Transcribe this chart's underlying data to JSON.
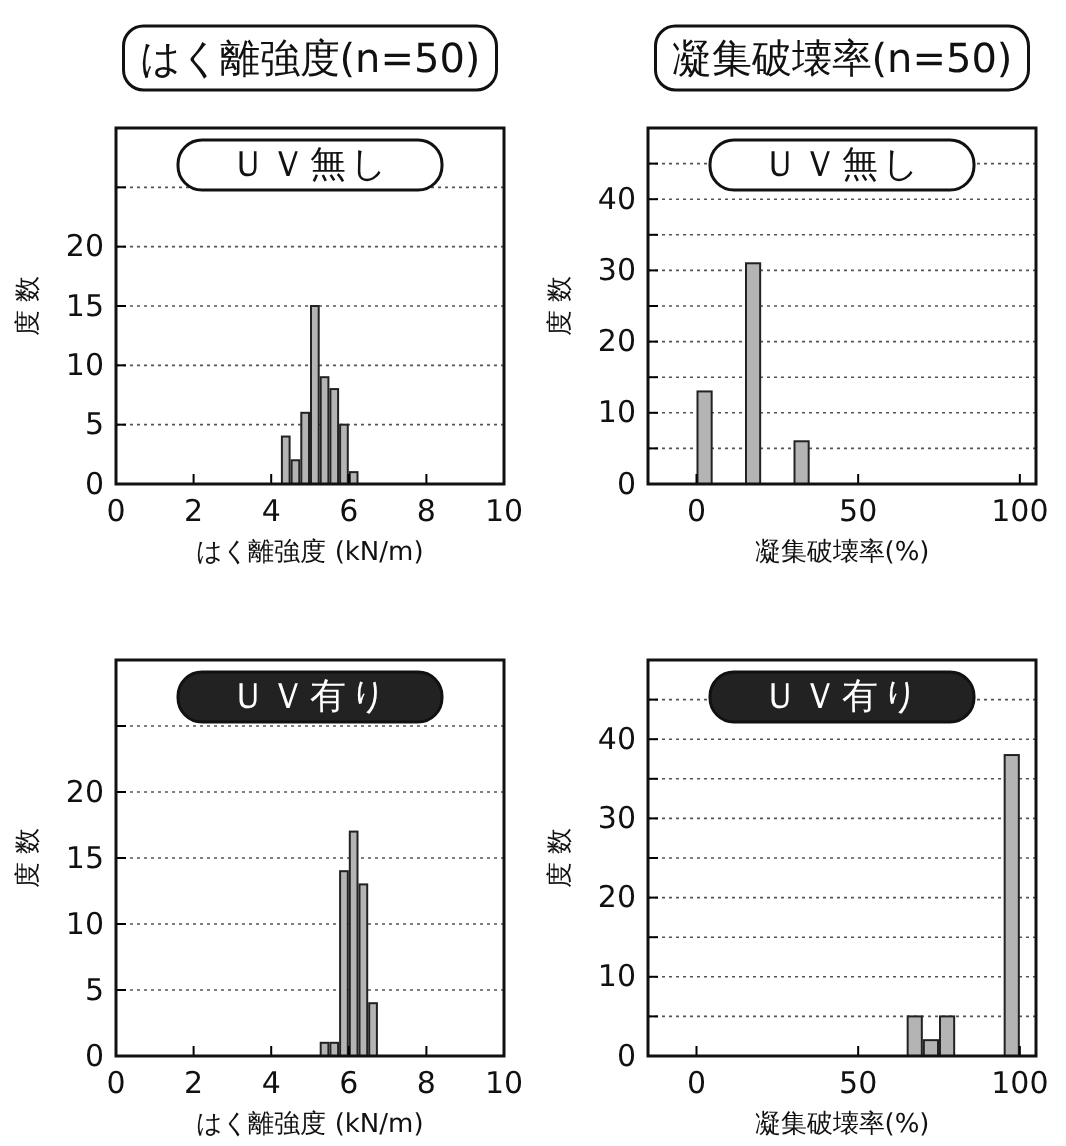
{
  "chart_data": [
    {
      "type": "histogram",
      "title": "はく離強度(n=50)",
      "subtitle": "ＵＶ無し",
      "xlabel": "はく離強度 (kN/m)",
      "ylabel": "度 数",
      "bins": [
        4.25,
        4.5,
        4.75,
        5,
        5.25,
        5.5,
        5.75,
        6,
        6.25
      ],
      "values": [
        4,
        2,
        6,
        15,
        9,
        8,
        5,
        1
      ],
      "color": "#b4b4b4",
      "xlim": [
        0,
        10
      ],
      "xticks": [
        0,
        2,
        4,
        6,
        8,
        10
      ],
      "ylim": [
        0,
        30
      ],
      "yticks": [
        0,
        5,
        10,
        15,
        20,
        {
          "value": 25,
          "label": null
        }
      ],
      "grid": "y"
    },
    {
      "type": "histogram",
      "title": "凝集破壊率(n=50)",
      "subtitle": "ＵＶ無し",
      "xlabel": "凝集破壊率(%)",
      "ylabel": "度 数",
      "bins": [
        0,
        5,
        10,
        15,
        20,
        25,
        30,
        35
      ],
      "values": [
        13,
        0,
        0,
        31,
        0,
        0,
        6
      ],
      "color": "#b4b4b4",
      "xlim": [
        -15,
        105
      ],
      "xticks": [
        0,
        50,
        100
      ],
      "ylim": [
        0,
        50
      ],
      "yticks": [
        0,
        {
          "value": 5,
          "label": null
        },
        10,
        {
          "value": 15,
          "label": null
        },
        20,
        {
          "value": 25,
          "label": null
        },
        30,
        {
          "value": 35,
          "label": null
        },
        40,
        {
          "value": 45,
          "label": null
        }
      ],
      "grid": "y"
    },
    {
      "type": "histogram",
      "subtitle": "ＵＶ有り",
      "xlabel": "はく離強度 (kN/m)",
      "ylabel": "度 数",
      "bins": [
        5.25,
        5.5,
        5.75,
        6,
        6.25,
        6.5,
        6.75
      ],
      "values": [
        1,
        1,
        14,
        17,
        13,
        4
      ],
      "color": "#b4b4b4",
      "xlim": [
        0,
        10
      ],
      "xticks": [
        0,
        2,
        4,
        6,
        8,
        10
      ],
      "ylim": [
        0,
        30
      ],
      "yticks": [
        0,
        5,
        10,
        15,
        20,
        {
          "value": 25,
          "label": null
        }
      ],
      "grid": "y"
    },
    {
      "type": "histogram",
      "subtitle": "ＵＶ有り",
      "xlabel": "凝集破壊率(%)",
      "ylabel": "度 数",
      "bins": [
        65,
        70,
        75,
        80,
        85,
        90,
        95,
        100
      ],
      "values": [
        5,
        2,
        5,
        0,
        0,
        0,
        38
      ],
      "color": "#b4b4b4",
      "xlim": [
        -15,
        105
      ],
      "xticks": [
        0,
        50,
        100
      ],
      "ylim": [
        0,
        50
      ],
      "yticks": [
        0,
        {
          "value": 5,
          "label": null
        },
        10,
        {
          "value": 15,
          "label": null
        },
        20,
        {
          "value": 25,
          "label": null
        },
        30,
        {
          "value": 35,
          "label": null
        },
        40,
        {
          "value": 45,
          "label": null
        }
      ],
      "grid": "y"
    }
  ]
}
